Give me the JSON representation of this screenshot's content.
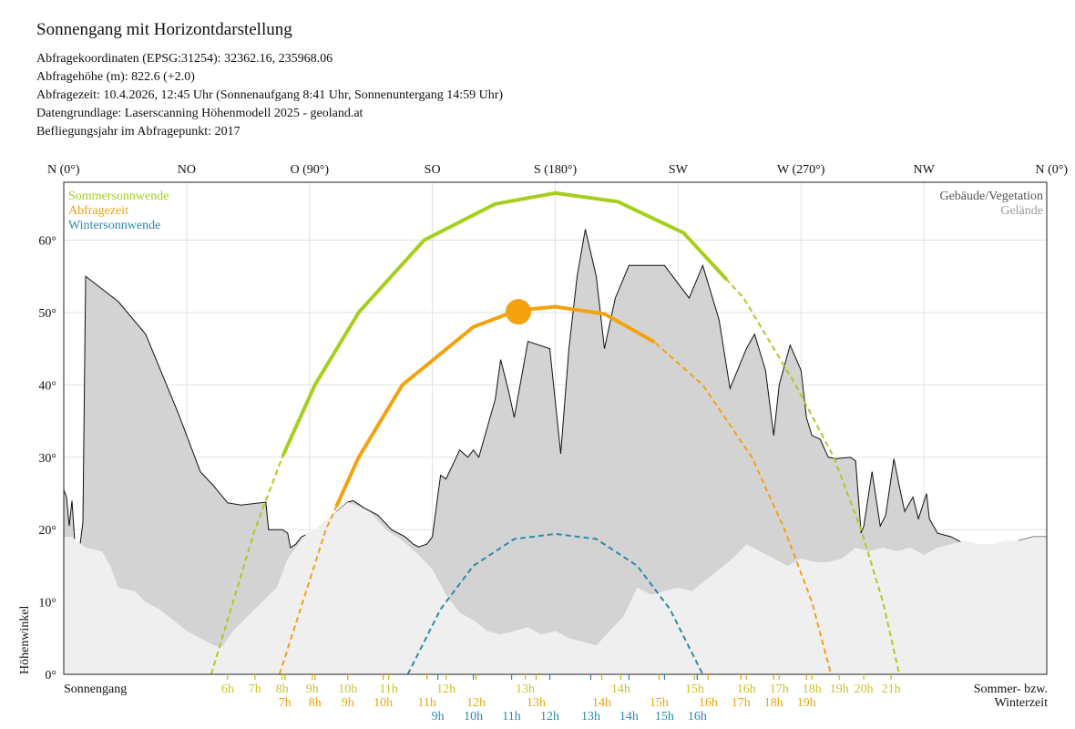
{
  "header": {
    "title": "Sonnengang mit Horizontdarstellung",
    "info": [
      "Abfragekoordinaten (EPSG:31254): 32362.16, 235968.06",
      "Abfragehöhe (m): 822.6 (+2.0)",
      "Abfragezeit: 10.4.2026, 12:45 Uhr (Sonnenaufgang 8:41 Uhr,  Sonnenuntergang 14:59 Uhr)",
      "Datengrundlage: Laserscanning Höhenmodell 2025 - geoland.at",
      "Befliegungsjahr im Abfragepunkt: 2017"
    ]
  },
  "chart_data": {
    "type": "line",
    "xlim": [
      0,
      360
    ],
    "ylim": [
      0,
      68
    ],
    "ylabel": "Höhenwinkel",
    "xlabel_left": "Sonnengang",
    "xlabel_right": [
      "Sommer- bzw.",
      "Winterzeit"
    ],
    "directions": [
      {
        "az": 0,
        "label": "N (0°)"
      },
      {
        "az": 45,
        "label": "NO"
      },
      {
        "az": 90,
        "label": "O (90°)"
      },
      {
        "az": 135,
        "label": "SO"
      },
      {
        "az": 180,
        "label": "S (180°)"
      },
      {
        "az": 225,
        "label": "SW"
      },
      {
        "az": 270,
        "label": "W (270°)"
      },
      {
        "az": 315,
        "label": "NW"
      },
      {
        "az": 360,
        "label": "N (0°)"
      }
    ],
    "yticks": [
      {
        "v": 0,
        "label": "0°"
      },
      {
        "v": 10,
        "label": "10°"
      },
      {
        "v": 20,
        "label": "20°"
      },
      {
        "v": 30,
        "label": "30°"
      },
      {
        "v": 40,
        "label": "40°"
      },
      {
        "v": 50,
        "label": "50°"
      },
      {
        "v": 60,
        "label": "60°"
      }
    ],
    "legend_left": [
      {
        "label": "Sommersonnwende",
        "color": "#a6cf1c"
      },
      {
        "label": "Abfragezeit",
        "color": "#f4a20f"
      },
      {
        "label": "Wintersonnwende",
        "color": "#2b8ab0"
      }
    ],
    "legend_right": [
      {
        "label": "Gebäude/Vegetation",
        "color": "#555555"
      },
      {
        "label": "Gelände",
        "color": "#9a9a9a"
      }
    ],
    "horizon_total": [
      [
        0,
        25.5
      ],
      [
        1,
        24.5
      ],
      [
        2,
        20.5
      ],
      [
        3,
        24
      ],
      [
        4,
        18.5
      ],
      [
        6,
        18
      ],
      [
        7,
        21
      ],
      [
        8,
        55
      ],
      [
        20,
        51.5
      ],
      [
        30,
        47
      ],
      [
        42,
        36
      ],
      [
        50,
        28
      ],
      [
        55,
        26
      ],
      [
        60,
        23.7
      ],
      [
        65,
        23.4
      ],
      [
        74,
        23.8
      ],
      [
        75,
        20
      ],
      [
        80,
        20
      ],
      [
        82,
        19.5
      ],
      [
        83,
        17.5
      ],
      [
        85,
        18
      ],
      [
        87,
        19
      ],
      [
        90,
        19.5
      ],
      [
        95,
        20.5
      ],
      [
        100,
        22.5
      ],
      [
        104,
        23.8
      ],
      [
        106,
        24
      ],
      [
        110,
        23
      ],
      [
        115,
        22
      ],
      [
        120,
        20
      ],
      [
        125,
        19
      ],
      [
        128,
        18
      ],
      [
        130,
        17.6
      ],
      [
        133,
        18
      ],
      [
        135,
        19
      ],
      [
        138,
        27.5
      ],
      [
        140,
        27
      ],
      [
        145,
        31
      ],
      [
        148,
        30
      ],
      [
        150,
        31
      ],
      [
        152,
        30
      ],
      [
        155,
        34
      ],
      [
        158,
        38
      ],
      [
        160,
        43.5
      ],
      [
        163,
        39
      ],
      [
        165,
        35.5
      ],
      [
        170,
        46
      ],
      [
        178,
        45
      ],
      [
        182,
        30.5
      ],
      [
        185,
        45
      ],
      [
        188,
        55
      ],
      [
        191,
        61.5
      ],
      [
        195,
        55
      ],
      [
        198,
        45
      ],
      [
        202,
        52
      ],
      [
        207,
        56.5
      ],
      [
        220,
        56.5
      ],
      [
        229,
        52
      ],
      [
        234,
        56.5
      ],
      [
        240,
        49
      ],
      [
        244,
        39.5
      ],
      [
        250,
        45
      ],
      [
        253,
        47
      ],
      [
        257,
        42
      ],
      [
        260,
        33
      ],
      [
        262,
        40
      ],
      [
        266,
        45.5
      ],
      [
        270,
        42
      ],
      [
        272,
        35.5
      ],
      [
        274,
        33
      ],
      [
        277,
        32.5
      ],
      [
        280,
        30
      ],
      [
        283,
        29.8
      ],
      [
        288,
        30
      ],
      [
        290,
        29.5
      ],
      [
        292,
        19.5
      ],
      [
        293,
        20.5
      ],
      [
        296,
        28
      ],
      [
        299,
        20.5
      ],
      [
        301,
        22
      ],
      [
        304,
        29.8
      ],
      [
        306,
        26
      ],
      [
        308,
        22.5
      ],
      [
        311,
        24.5
      ],
      [
        313,
        21.5
      ],
      [
        316,
        25
      ],
      [
        317,
        21.5
      ],
      [
        320,
        19.5
      ],
      [
        325,
        19
      ],
      [
        330,
        18
      ],
      [
        340,
        17
      ],
      [
        350,
        18.5
      ],
      [
        355,
        19
      ],
      [
        360,
        19
      ]
    ],
    "horizon_terrain": [
      [
        0,
        19
      ],
      [
        3,
        19
      ],
      [
        8,
        17.5
      ],
      [
        14,
        17
      ],
      [
        17,
        15
      ],
      [
        20,
        12
      ],
      [
        26,
        11.5
      ],
      [
        30,
        10
      ],
      [
        35,
        9
      ],
      [
        40,
        7.5
      ],
      [
        45,
        6
      ],
      [
        50,
        5
      ],
      [
        55,
        4
      ],
      [
        58,
        3.8
      ],
      [
        62,
        6
      ],
      [
        66,
        7.5
      ],
      [
        70,
        9
      ],
      [
        74,
        10.5
      ],
      [
        78,
        12
      ],
      [
        82,
        16
      ],
      [
        85,
        17.5
      ],
      [
        89,
        19.5
      ],
      [
        92,
        20
      ],
      [
        95,
        21
      ],
      [
        100,
        22.5
      ],
      [
        104,
        23.8
      ],
      [
        108,
        23.2
      ],
      [
        112,
        22.5
      ],
      [
        118,
        20
      ],
      [
        124,
        18.5
      ],
      [
        130,
        16.5
      ],
      [
        135,
        14.5
      ],
      [
        140,
        11
      ],
      [
        145,
        8.5
      ],
      [
        150,
        7.5
      ],
      [
        155,
        6
      ],
      [
        160,
        5.5
      ],
      [
        165,
        6
      ],
      [
        170,
        6.5
      ],
      [
        175,
        5.5
      ],
      [
        180,
        6
      ],
      [
        185,
        5
      ],
      [
        190,
        4.5
      ],
      [
        195,
        4
      ],
      [
        200,
        6
      ],
      [
        205,
        8
      ],
      [
        210,
        12
      ],
      [
        215,
        11
      ],
      [
        220,
        11.5
      ],
      [
        225,
        12
      ],
      [
        230,
        11.5
      ],
      [
        235,
        13
      ],
      [
        240,
        14.5
      ],
      [
        245,
        16
      ],
      [
        250,
        18
      ],
      [
        255,
        17
      ],
      [
        260,
        16
      ],
      [
        265,
        15
      ],
      [
        270,
        16
      ],
      [
        275,
        15.5
      ],
      [
        280,
        15.5
      ],
      [
        285,
        16
      ],
      [
        290,
        17.5
      ],
      [
        295,
        17
      ],
      [
        300,
        17.5
      ],
      [
        305,
        17
      ],
      [
        310,
        17.5
      ],
      [
        315,
        16.5
      ],
      [
        320,
        17.5
      ],
      [
        325,
        18
      ],
      [
        330,
        18.5
      ],
      [
        335,
        18
      ],
      [
        340,
        18
      ],
      [
        345,
        18.5
      ],
      [
        350,
        18.5
      ],
      [
        355,
        19
      ],
      [
        360,
        19
      ]
    ],
    "series": [
      {
        "name": "Sommersonnwende",
        "color": "#a6cf1c",
        "solid_az": [
          80.4,
          242.4
        ],
        "points": [
          [
            54,
            0
          ],
          [
            62,
            10
          ],
          [
            70,
            20
          ],
          [
            80,
            30
          ],
          [
            92,
            40
          ],
          [
            108,
            50
          ],
          [
            132,
            60
          ],
          [
            158,
            65
          ],
          [
            180,
            66.5
          ],
          [
            203,
            65.3
          ],
          [
            227,
            61
          ],
          [
            249,
            52
          ],
          [
            268,
            40
          ],
          [
            282,
            30
          ],
          [
            292,
            20
          ],
          [
            300,
            10
          ],
          [
            306,
            0
          ]
        ]
      },
      {
        "name": "Abfragezeit",
        "color": "#f4a20f",
        "solid_az": [
          100,
          216
        ],
        "points": [
          [
            79,
            0
          ],
          [
            87.5,
            10
          ],
          [
            96,
            20
          ],
          [
            108,
            30
          ],
          [
            124,
            40
          ],
          [
            150,
            48
          ],
          [
            166,
            50.3
          ],
          [
            180,
            50.8
          ],
          [
            198,
            49.8
          ],
          [
            216,
            46
          ],
          [
            234,
            40
          ],
          [
            252,
            30
          ],
          [
            264,
            20
          ],
          [
            274,
            10
          ],
          [
            281,
            0
          ]
        ]
      },
      {
        "name": "Wintersonnwende",
        "color": "#2b8ab0",
        "solid_az": null,
        "points": [
          [
            126,
            0
          ],
          [
            138,
            9
          ],
          [
            150,
            15
          ],
          [
            165,
            18.7
          ],
          [
            180,
            19.4
          ],
          [
            195,
            18.7
          ],
          [
            210,
            15
          ],
          [
            222,
            9
          ],
          [
            234,
            0
          ]
        ]
      }
    ],
    "query_sun": {
      "az": 166.5,
      "elev": 50.1
    },
    "time_rows": [
      {
        "color": "#c8c42a",
        "labels": [
          {
            "az": 60,
            "t": "6h"
          },
          {
            "az": 70,
            "t": "7h"
          },
          {
            "az": 80,
            "t": "8h"
          },
          {
            "az": 91,
            "t": "9h"
          },
          {
            "az": 104,
            "t": "10h"
          },
          {
            "az": 119,
            "t": "11h"
          },
          {
            "az": 140,
            "t": "12h"
          },
          {
            "az": 169,
            "t": "13h"
          },
          {
            "az": 204,
            "t": "14h"
          },
          {
            "az": 231,
            "t": "15h"
          },
          {
            "az": 250,
            "t": "16h"
          },
          {
            "az": 262,
            "t": "17h"
          },
          {
            "az": 274,
            "t": "18h"
          },
          {
            "az": 284,
            "t": "19h"
          },
          {
            "az": 293,
            "t": "20h"
          },
          {
            "az": 303,
            "t": "21h"
          }
        ]
      },
      {
        "color": "#e8a60f",
        "labels": [
          {
            "az": 81,
            "t": "7h"
          },
          {
            "az": 92,
            "t": "8h"
          },
          {
            "az": 104,
            "t": "9h"
          },
          {
            "az": 117,
            "t": "10h"
          },
          {
            "az": 133,
            "t": "11h"
          },
          {
            "az": 151,
            "t": "12h"
          },
          {
            "az": 173,
            "t": "13h"
          },
          {
            "az": 197,
            "t": "14h"
          },
          {
            "az": 218,
            "t": "15h"
          },
          {
            "az": 236,
            "t": "16h"
          },
          {
            "az": 248,
            "t": "17h"
          },
          {
            "az": 260,
            "t": "18h"
          },
          {
            "az": 272,
            "t": "19h"
          }
        ]
      },
      {
        "color": "#2b8ab0",
        "labels": [
          {
            "az": 137,
            "t": "9h"
          },
          {
            "az": 150,
            "t": "10h"
          },
          {
            "az": 164,
            "t": "11h"
          },
          {
            "az": 178,
            "t": "12h"
          },
          {
            "az": 193,
            "t": "13h"
          },
          {
            "az": 207,
            "t": "14h"
          },
          {
            "az": 220,
            "t": "15h"
          },
          {
            "az": 232,
            "t": "16h"
          }
        ]
      }
    ]
  }
}
